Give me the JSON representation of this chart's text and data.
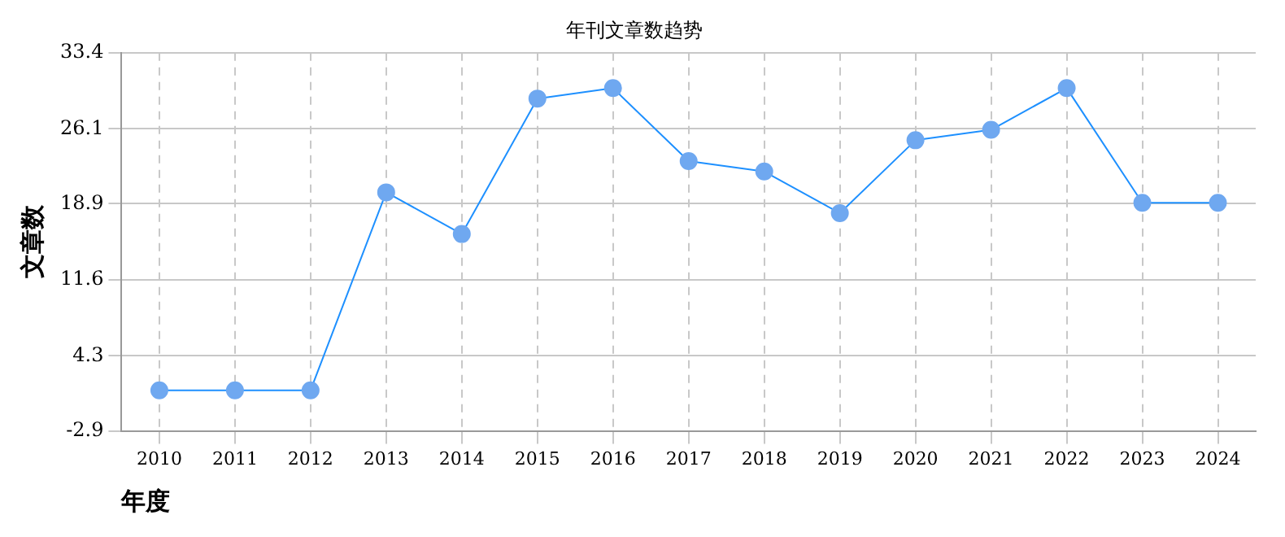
{
  "chart_data": {
    "type": "line",
    "title": "年刊文章数趋势",
    "xlabel": "年度",
    "ylabel": "文章数",
    "categories": [
      "2010",
      "2011",
      "2012",
      "2013",
      "2014",
      "2015",
      "2016",
      "2017",
      "2018",
      "2019",
      "2020",
      "2021",
      "2022",
      "2023",
      "2024"
    ],
    "series": [
      {
        "color": "#1e90ff",
        "values": [
          1,
          1,
          1,
          20,
          16,
          29,
          30,
          23,
          22,
          18,
          25,
          26,
          30,
          19,
          19
        ]
      }
    ],
    "ylim": [
      -2.9,
      33.4
    ],
    "yticks": [
      -2.9,
      4.3,
      11.6,
      18.9,
      26.1,
      33.4
    ],
    "grid": true,
    "marker": "circle",
    "line_style": "solid"
  }
}
